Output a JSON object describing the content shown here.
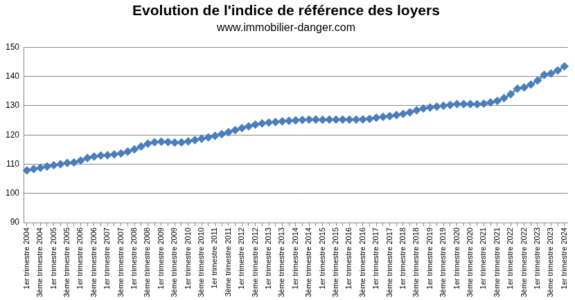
{
  "chart_data": {
    "type": "line",
    "title": "Evolution de l'indice de référence des loyers",
    "subtitle": "www.immobilier-danger.com",
    "categories": [
      "1er trimestre 2004",
      null,
      "3ème trimestre 2004",
      null,
      "1er trimestre 2005",
      null,
      "3ème trimestre 2005",
      null,
      "1er trimestre 2006",
      null,
      "3ème trimestre 2006",
      null,
      "1er trimestre 2007",
      null,
      "3ème trimestre 2007",
      null,
      "1er trimestre 2008",
      null,
      "3ème trimestre 2008",
      null,
      "1er trimestre 2009",
      null,
      "3ème trimestre 2009",
      null,
      "1er trimestre 2010",
      null,
      "3ème trimestre 2010",
      null,
      "1er trimestre 2011",
      null,
      "3ème trimestre 2011",
      null,
      "1er trimestre 2012",
      null,
      "3ème trimestre 2012",
      null,
      "1er trimestre 2013",
      null,
      "3ème trimestre 2013",
      null,
      "1er trimestre 2014",
      null,
      "3ème trimestre 2014",
      null,
      "1er trimestre 2015",
      null,
      "3ème trimestre 2015",
      null,
      "1er trimestre 2016",
      null,
      "3ème trimestre 2016",
      null,
      "1er trimestre 2017",
      null,
      "3ème trimestre 2017",
      null,
      "1er trimestre 2018",
      null,
      "3ème trimestre 2018",
      null,
      "1er trimestre 2019",
      null,
      "3ème trimestre 2019",
      null,
      "1er trimestre 2020",
      null,
      "3ème trimestre 2020",
      null,
      "1er trimestre 2021",
      null,
      "3ème trimestre 2021",
      null,
      "1er trimestre 2022",
      null,
      "3ème trimestre 2022",
      null,
      "1er trimestre 2023",
      null,
      "3ème trimestre 2023",
      null,
      "1er trimestre 2024"
    ],
    "values": [
      107.86,
      108.38,
      108.75,
      109.21,
      109.65,
      110.0,
      110.44,
      110.61,
      111.25,
      112.11,
      112.63,
      112.98,
      113.07,
      113.37,
      113.68,
      114.3,
      115.12,
      116.07,
      117.03,
      117.54,
      117.7,
      117.59,
      117.41,
      117.47,
      117.81,
      118.26,
      118.7,
      119.17,
      119.69,
      120.31,
      120.95,
      121.68,
      122.37,
      122.96,
      123.55,
      123.97,
      124.25,
      124.44,
      124.66,
      124.83,
      125.0,
      125.15,
      125.24,
      125.29,
      125.19,
      125.25,
      125.26,
      125.28,
      125.26,
      125.25,
      125.33,
      125.5,
      125.9,
      126.19,
      126.46,
      126.82,
      127.22,
      127.77,
      128.45,
      129.03,
      129.38,
      129.72,
      129.99,
      130.26,
      130.57,
      130.57,
      130.59,
      130.52,
      130.69,
      131.12,
      131.67,
      132.62,
      133.93,
      135.84,
      136.27,
      137.26,
      138.61,
      140.59,
      141.03,
      142.06,
      143.46
    ],
    "color": "#4a7ebb",
    "marker": "diamond",
    "ylim": [
      90,
      150
    ],
    "yticks": [
      90,
      100,
      110,
      120,
      130,
      140,
      150
    ],
    "grid": true
  }
}
